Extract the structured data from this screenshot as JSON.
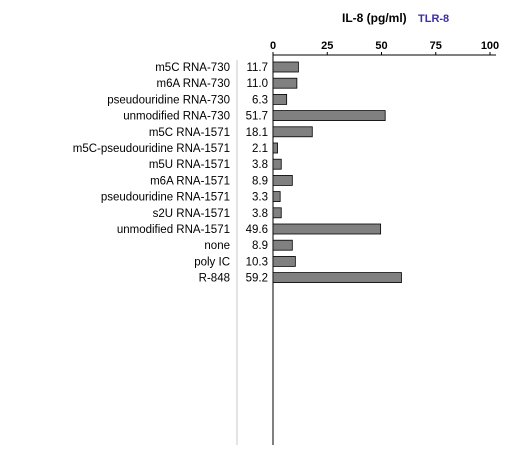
{
  "chart_data": {
    "type": "bar",
    "orientation": "horizontal",
    "title": "IL-8 (pg/ml)",
    "subtitle": "TLR-8",
    "xlim": [
      0,
      100
    ],
    "xticks": [
      0,
      25,
      50,
      75,
      100
    ],
    "grid": false,
    "colors": {
      "bar": "#808080",
      "bar_stroke": "#000000",
      "subtitle": "#3a2fa8",
      "divider": "#c8c8c8"
    },
    "categories": [
      "m5C RNA-730",
      "m6A RNA-730",
      "pseudouridine RNA-730",
      "unmodified RNA-730",
      "m5C RNA-1571",
      "m5C-pseudouridine RNA-1571",
      "m5U RNA-1571",
      "m6A RNA-1571",
      "pseudouridine RNA-1571",
      "s2U RNA-1571",
      "unmodified RNA-1571",
      "none",
      "poly IC",
      "R-848"
    ],
    "values": [
      11.7,
      11.0,
      6.3,
      51.7,
      18.1,
      2.1,
      3.8,
      8.9,
      3.3,
      3.8,
      49.6,
      8.9,
      10.3,
      59.2
    ],
    "value_labels": [
      "11.7",
      "11.0",
      "6.3",
      "51.7",
      "18.1",
      "2.1",
      "3.8",
      "8.9",
      "3.3",
      "3.8",
      "49.6",
      "8.9",
      "10.3",
      "59.2"
    ]
  }
}
